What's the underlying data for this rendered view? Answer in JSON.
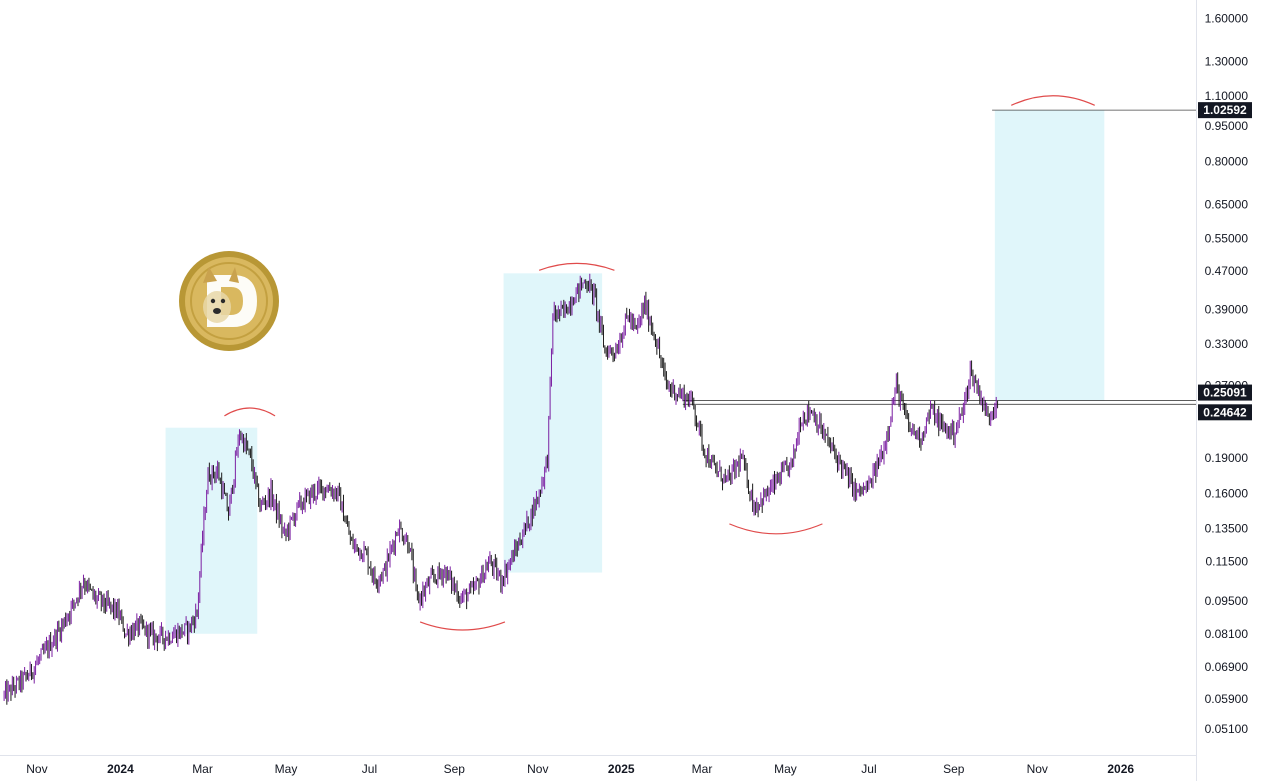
{
  "chart_data": {
    "type": "candlestick",
    "scale": "log",
    "grid": false,
    "ylim": [
      0.045,
      1.75
    ],
    "xlim": [
      "2023-10-05",
      "2026-02-25"
    ],
    "y_ticks": [
      "1.60000",
      "1.30000",
      "1.10000",
      "0.95000",
      "0.80000",
      "0.65000",
      "0.55000",
      "0.47000",
      "0.39000",
      "0.33000",
      "0.27000",
      "0.19000",
      "0.16000",
      "0.13500",
      "0.11500",
      "0.09500",
      "0.08100",
      "0.06900",
      "0.05900",
      "0.05100"
    ],
    "x_ticks": [
      {
        "date": "2023-11-01",
        "label": "Nov",
        "bold": false
      },
      {
        "date": "2024-01-01",
        "label": "2024",
        "bold": true
      },
      {
        "date": "2024-03-01",
        "label": "Mar",
        "bold": false
      },
      {
        "date": "2024-05-01",
        "label": "May",
        "bold": false
      },
      {
        "date": "2024-07-01",
        "label": "Jul",
        "bold": false
      },
      {
        "date": "2024-09-01",
        "label": "Sep",
        "bold": false
      },
      {
        "date": "2024-11-01",
        "label": "Nov",
        "bold": false
      },
      {
        "date": "2025-01-01",
        "label": "2025",
        "bold": true
      },
      {
        "date": "2025-03-01",
        "label": "Mar",
        "bold": false
      },
      {
        "date": "2025-05-01",
        "label": "May",
        "bold": false
      },
      {
        "date": "2025-07-01",
        "label": "Jul",
        "bold": false
      },
      {
        "date": "2025-09-01",
        "label": "Sep",
        "bold": false
      },
      {
        "date": "2025-11-01",
        "label": "Nov",
        "bold": false
      },
      {
        "date": "2026-01-01",
        "label": "2026",
        "bold": true
      }
    ],
    "price_path": [
      [
        "2023-10-08",
        0.06
      ],
      [
        "2023-10-25",
        0.066
      ],
      [
        "2023-11-08",
        0.075
      ],
      [
        "2023-11-18",
        0.083
      ],
      [
        "2023-11-28",
        0.094
      ],
      [
        "2023-12-05",
        0.105
      ],
      [
        "2023-12-12",
        0.097
      ],
      [
        "2023-12-22",
        0.093
      ],
      [
        "2023-12-30",
        0.09
      ],
      [
        "2024-01-05",
        0.081
      ],
      [
        "2024-01-15",
        0.084
      ],
      [
        "2024-01-25",
        0.08
      ],
      [
        "2024-02-05",
        0.08
      ],
      [
        "2024-02-20",
        0.083
      ],
      [
        "2024-02-26",
        0.09
      ],
      [
        "2024-03-01",
        0.13
      ],
      [
        "2024-03-05",
        0.175
      ],
      [
        "2024-03-12",
        0.178
      ],
      [
        "2024-03-20",
        0.145
      ],
      [
        "2024-03-28",
        0.215
      ],
      [
        "2024-04-05",
        0.19
      ],
      [
        "2024-04-12",
        0.15
      ],
      [
        "2024-04-20",
        0.16
      ],
      [
        "2024-04-30",
        0.13
      ],
      [
        "2024-05-10",
        0.15
      ],
      [
        "2024-05-20",
        0.16
      ],
      [
        "2024-05-30",
        0.165
      ],
      [
        "2024-06-08",
        0.16
      ],
      [
        "2024-06-18",
        0.125
      ],
      [
        "2024-06-28",
        0.12
      ],
      [
        "2024-07-05",
        0.105
      ],
      [
        "2024-07-12",
        0.11
      ],
      [
        "2024-07-22",
        0.136
      ],
      [
        "2024-07-30",
        0.125
      ],
      [
        "2024-08-05",
        0.095
      ],
      [
        "2024-08-15",
        0.105
      ],
      [
        "2024-08-25",
        0.11
      ],
      [
        "2024-09-06",
        0.096
      ],
      [
        "2024-09-15",
        0.1
      ],
      [
        "2024-09-27",
        0.115
      ],
      [
        "2024-10-05",
        0.105
      ],
      [
        "2024-10-15",
        0.12
      ],
      [
        "2024-10-25",
        0.14
      ],
      [
        "2024-11-02",
        0.16
      ],
      [
        "2024-11-08",
        0.19
      ],
      [
        "2024-11-12",
        0.38
      ],
      [
        "2024-11-20",
        0.385
      ],
      [
        "2024-11-28",
        0.42
      ],
      [
        "2024-12-06",
        0.45
      ],
      [
        "2024-12-12",
        0.42
      ],
      [
        "2024-12-20",
        0.32
      ],
      [
        "2024-12-28",
        0.32
      ],
      [
        "2025-01-06",
        0.38
      ],
      [
        "2025-01-12",
        0.35
      ],
      [
        "2025-01-18",
        0.4
      ],
      [
        "2025-01-26",
        0.34
      ],
      [
        "2025-02-03",
        0.27
      ],
      [
        "2025-02-12",
        0.26
      ],
      [
        "2025-02-22",
        0.25
      ],
      [
        "2025-03-02",
        0.2
      ],
      [
        "2025-03-10",
        0.18
      ],
      [
        "2025-03-20",
        0.17
      ],
      [
        "2025-03-30",
        0.19
      ],
      [
        "2025-04-08",
        0.15
      ],
      [
        "2025-04-18",
        0.16
      ],
      [
        "2025-04-28",
        0.175
      ],
      [
        "2025-05-06",
        0.185
      ],
      [
        "2025-05-12",
        0.23
      ],
      [
        "2025-05-20",
        0.24
      ],
      [
        "2025-05-30",
        0.21
      ],
      [
        "2025-06-10",
        0.185
      ],
      [
        "2025-06-22",
        0.16
      ],
      [
        "2025-07-01",
        0.165
      ],
      [
        "2025-07-12",
        0.2
      ],
      [
        "2025-07-21",
        0.27
      ],
      [
        "2025-07-30",
        0.22
      ],
      [
        "2025-08-08",
        0.21
      ],
      [
        "2025-08-15",
        0.24
      ],
      [
        "2025-08-24",
        0.22
      ],
      [
        "2025-09-01",
        0.215
      ],
      [
        "2025-09-08",
        0.24
      ],
      [
        "2025-09-13",
        0.29
      ],
      [
        "2025-09-20",
        0.26
      ],
      [
        "2025-09-26",
        0.23
      ],
      [
        "2025-10-03",
        0.255
      ]
    ],
    "highlight_boxes": [
      {
        "x1": "2024-02-03",
        "x2": "2024-04-10",
        "y1": 0.081,
        "y2": 0.22
      },
      {
        "x1": "2024-10-07",
        "x2": "2024-12-18",
        "y1": 0.109,
        "y2": 0.465
      },
      {
        "x1": "2025-10-01",
        "x2": "2025-12-20",
        "y1": 0.2509,
        "y2": 1.02592
      }
    ],
    "horizontal_levels": [
      {
        "value": 0.25091,
        "label": "0.25091",
        "from": "2025-02-15"
      },
      {
        "value": 0.24642,
        "label": "0.24642",
        "from": "2025-02-15"
      },
      {
        "value": 1.02592,
        "label": "1.02592",
        "from": "2025-09-29"
      }
    ],
    "arcs": [
      {
        "type": "top",
        "x1": "2024-03-17",
        "x2": "2024-04-23",
        "y": 0.233,
        "y_peak": 0.242
      },
      {
        "type": "top",
        "x1": "2024-11-02",
        "x2": "2024-12-27",
        "y": 0.472,
        "y_peak": 0.488
      },
      {
        "type": "top",
        "x1": "2025-10-13",
        "x2": "2025-12-13",
        "y": 1.05,
        "y_peak": 1.1
      },
      {
        "type": "bottom",
        "x1": "2024-08-07",
        "x2": "2024-10-08",
        "y": 0.0858,
        "y_peak": 0.0825
      },
      {
        "type": "bottom",
        "x1": "2025-03-21",
        "x2": "2025-05-28",
        "y": 0.138,
        "y_peak": 0.1315
      }
    ],
    "colors": {
      "bull": "#7b1fa2",
      "bear": "#1a1a1a",
      "box": "#e0f6fa",
      "arc": "#e04b4b",
      "level": "#444444"
    },
    "logo": "dogecoin-logo"
  }
}
